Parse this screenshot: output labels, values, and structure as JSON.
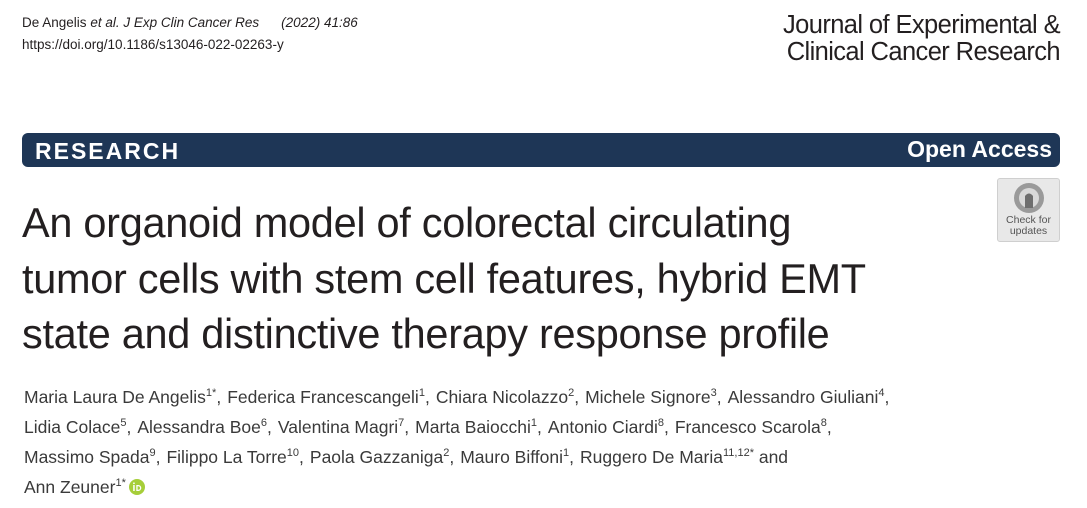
{
  "header": {
    "cite_authors": "De Angelis",
    "cite_etal": "et al.",
    "cite_journal": "J Exp Clin Cancer Res",
    "cite_year": "(2022) 41:86",
    "doi": "https://doi.org/10.1186/s13046-022-02263-y",
    "journal_name": [
      "Journal of Experimental &",
      "Clinical Cancer Research"
    ]
  },
  "banner": {
    "section": "RESEARCH",
    "access": "Open Access"
  },
  "badge": [
    "Check for",
    "updates"
  ],
  "title": [
    "An organoid model of colorectal circulating",
    "tumor cells with stem cell features, hybrid EMT",
    "state and distinctive therapy response profile"
  ],
  "author_lines": [
    [
      {
        "name": "Maria Laura De Angelis",
        "sup": "1*",
        "sep": ","
      },
      {
        "name": "Federica Francescangeli",
        "sup": "1",
        "sep": ","
      },
      {
        "name": "Chiara Nicolazzo",
        "sup": "2",
        "sep": ","
      },
      {
        "name": "Michele Signore",
        "sup": "3",
        "sep": ","
      },
      {
        "name": "Alessandro Giuliani",
        "sup": "4",
        "sep": ","
      }
    ],
    [
      {
        "name": "Lidia Colace",
        "sup": "5",
        "sep": ","
      },
      {
        "name": "Alessandra Boe",
        "sup": "6",
        "sep": ","
      },
      {
        "name": "Valentina Magri",
        "sup": "7",
        "sep": ","
      },
      {
        "name": "Marta Baiocchi",
        "sup": "1",
        "sep": ","
      },
      {
        "name": "Antonio Ciardi",
        "sup": "8",
        "sep": ","
      },
      {
        "name": "Francesco Scarola",
        "sup": "8",
        "sep": ","
      }
    ],
    [
      {
        "name": "Massimo Spada",
        "sup": "9",
        "sep": ","
      },
      {
        "name": "Filippo La Torre",
        "sup": "10",
        "sep": ","
      },
      {
        "name": "Paola Gazzaniga",
        "sup": "2",
        "sep": ","
      },
      {
        "name": "Mauro Biffoni",
        "sup": "1",
        "sep": ","
      },
      {
        "name": "Ruggero De Maria",
        "sup": "11,12*",
        "sep": " and"
      }
    ],
    [
      {
        "name": "Ann Zeuner",
        "sup": "1*"
      }
    ]
  ]
}
